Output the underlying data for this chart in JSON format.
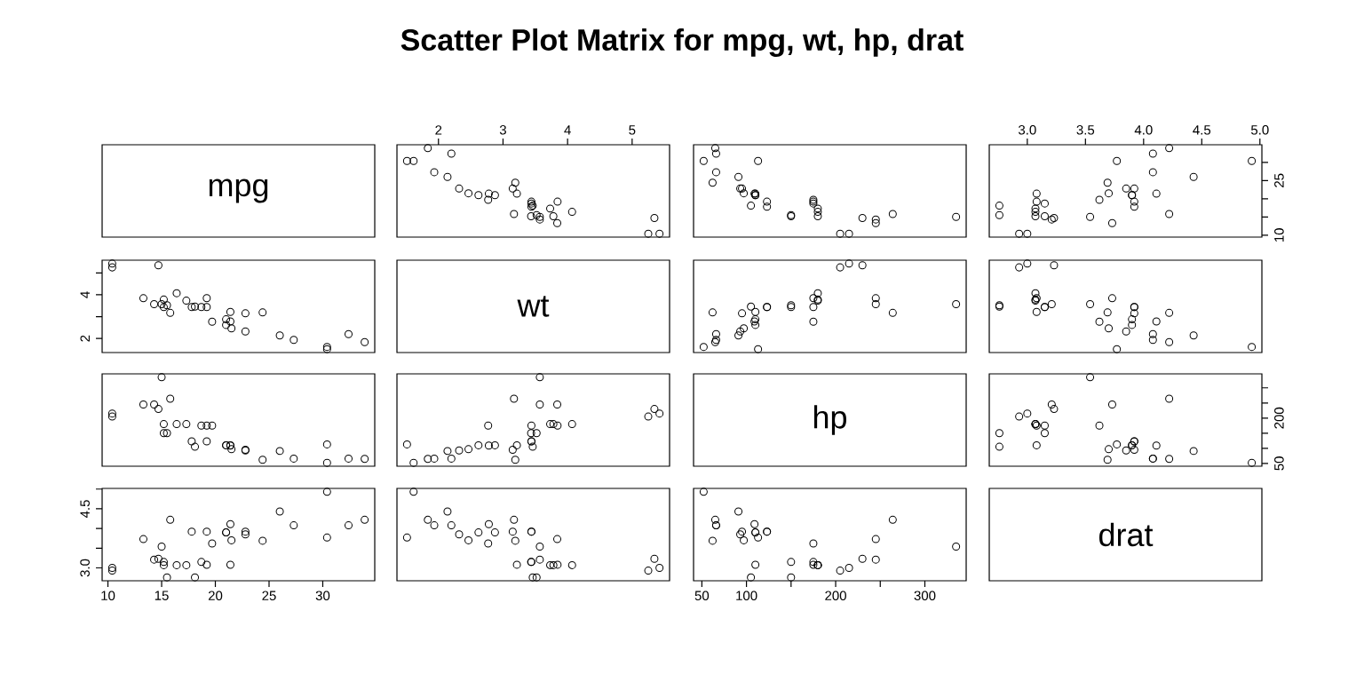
{
  "chart_data": [
    {
      "type": "other",
      "title": "Scatter Plot Matrix for mpg, wt, hp, drat",
      "annotations": [
        "mpg"
      ]
    },
    {
      "type": "scatter",
      "marker": "circle",
      "color": "#000000",
      "tick_labels": "x",
      "xlim": [
        1.357,
        5.58
      ],
      "ylim": [
        9.46,
        34.84
      ],
      "xticks": [
        2,
        3,
        4,
        5
      ],
      "x": [
        2.62,
        2.875,
        2.32,
        3.215,
        3.44,
        3.46,
        3.57,
        3.19,
        3.15,
        3.44,
        3.44,
        4.07,
        3.73,
        3.78,
        5.25,
        5.424,
        5.345,
        2.2,
        1.615,
        1.835,
        2.465,
        3.52,
        3.435,
        3.84,
        3.845,
        1.935,
        2.14,
        1.513,
        3.17,
        2.77,
        3.57,
        2.78
      ],
      "values": [
        21.0,
        21.0,
        22.8,
        21.4,
        18.7,
        18.1,
        14.3,
        24.4,
        22.8,
        19.2,
        17.8,
        16.4,
        17.3,
        15.2,
        10.4,
        10.4,
        14.7,
        32.4,
        30.4,
        33.9,
        21.5,
        15.5,
        15.2,
        13.3,
        19.2,
        27.3,
        26.0,
        30.4,
        15.8,
        19.7,
        15.0,
        21.4
      ]
    },
    {
      "type": "scatter",
      "marker": "circle",
      "color": "#000000",
      "tick_labels": false,
      "xlim": [
        40.68,
        346.32
      ],
      "ylim": [
        9.46,
        34.84
      ],
      "x": [
        110,
        110,
        93,
        110,
        175,
        105,
        245,
        62,
        95,
        123,
        123,
        180,
        180,
        180,
        205,
        215,
        230,
        66,
        52,
        65,
        97,
        150,
        150,
        245,
        175,
        66,
        91,
        113,
        264,
        175,
        335,
        109
      ],
      "values": [
        21.0,
        21.0,
        22.8,
        21.4,
        18.7,
        18.1,
        14.3,
        24.4,
        22.8,
        19.2,
        17.8,
        16.4,
        17.3,
        15.2,
        10.4,
        10.4,
        14.7,
        32.4,
        30.4,
        33.9,
        21.5,
        15.5,
        15.2,
        13.3,
        19.2,
        27.3,
        26.0,
        30.4,
        15.8,
        19.7,
        15.0,
        21.4
      ]
    },
    {
      "type": "scatter",
      "marker": "circle",
      "color": "#000000",
      "xlim": [
        2.673,
        5.017
      ],
      "ylim": [
        9.46,
        34.84
      ],
      "xticks": [
        {
          "value": 3,
          "label": "3.0"
        },
        3.5,
        {
          "value": 4,
          "label": "4.0"
        },
        4.5,
        {
          "value": 5,
          "label": "5.0"
        }
      ],
      "yticks": [
        10,
        {
          "value": 15,
          "label": null
        },
        {
          "value": 20,
          "label": null
        },
        25,
        {
          "value": 30,
          "label": null
        }
      ],
      "x": [
        3.9,
        3.9,
        3.85,
        3.08,
        3.15,
        2.76,
        3.21,
        3.69,
        3.92,
        3.92,
        3.92,
        3.07,
        3.07,
        3.07,
        2.93,
        3.0,
        3.23,
        4.08,
        4.93,
        4.22,
        3.7,
        2.76,
        3.15,
        3.73,
        3.08,
        4.08,
        4.43,
        3.77,
        4.22,
        3.62,
        3.54,
        4.11
      ],
      "values": [
        21.0,
        21.0,
        22.8,
        21.4,
        18.7,
        18.1,
        14.3,
        24.4,
        22.8,
        19.2,
        17.8,
        16.4,
        17.3,
        15.2,
        10.4,
        10.4,
        14.7,
        32.4,
        30.4,
        33.9,
        21.5,
        15.5,
        15.2,
        13.3,
        19.2,
        27.3,
        26.0,
        30.4,
        15.8,
        19.7,
        15.0,
        21.4
      ]
    },
    {
      "type": "scatter",
      "marker": "circle",
      "color": "#000000",
      "tick_labels": "y",
      "xlim": [
        9.46,
        34.84
      ],
      "ylim": [
        1.357,
        5.58
      ],
      "yticks": [
        2,
        {
          "value": 3,
          "label": null
        },
        4,
        {
          "value": 5,
          "label": null
        }
      ],
      "x": [
        21.0,
        21.0,
        22.8,
        21.4,
        18.7,
        18.1,
        14.3,
        24.4,
        22.8,
        19.2,
        17.8,
        16.4,
        17.3,
        15.2,
        10.4,
        10.4,
        14.7,
        32.4,
        30.4,
        33.9,
        21.5,
        15.5,
        15.2,
        13.3,
        19.2,
        27.3,
        26.0,
        30.4,
        15.8,
        19.7,
        15.0,
        21.4
      ],
      "values": [
        2.62,
        2.875,
        2.32,
        3.215,
        3.44,
        3.46,
        3.57,
        3.19,
        3.15,
        3.44,
        3.44,
        4.07,
        3.73,
        3.78,
        5.25,
        5.424,
        5.345,
        2.2,
        1.615,
        1.835,
        2.465,
        3.52,
        3.435,
        3.84,
        3.845,
        1.935,
        2.14,
        1.513,
        3.17,
        2.77,
        3.57,
        2.78
      ]
    },
    {
      "type": "other",
      "annotations": [
        "wt"
      ]
    },
    {
      "type": "scatter",
      "marker": "circle",
      "color": "#000000",
      "tick_labels": false,
      "xlim": [
        40.68,
        346.32
      ],
      "ylim": [
        1.357,
        5.58
      ],
      "x": [
        110,
        110,
        93,
        110,
        175,
        105,
        245,
        62,
        95,
        123,
        123,
        180,
        180,
        180,
        205,
        215,
        230,
        66,
        52,
        65,
        97,
        150,
        150,
        245,
        175,
        66,
        91,
        113,
        264,
        175,
        335,
        109
      ],
      "values": [
        2.62,
        2.875,
        2.32,
        3.215,
        3.44,
        3.46,
        3.57,
        3.19,
        3.15,
        3.44,
        3.44,
        4.07,
        3.73,
        3.78,
        5.25,
        5.424,
        5.345,
        2.2,
        1.615,
        1.835,
        2.465,
        3.52,
        3.435,
        3.84,
        3.845,
        1.935,
        2.14,
        1.513,
        3.17,
        2.77,
        3.57,
        2.78
      ]
    },
    {
      "type": "scatter",
      "marker": "circle",
      "color": "#000000",
      "tick_labels": false,
      "xlim": [
        2.673,
        5.017
      ],
      "ylim": [
        1.357,
        5.58
      ],
      "x": [
        3.9,
        3.9,
        3.85,
        3.08,
        3.15,
        2.76,
        3.21,
        3.69,
        3.92,
        3.92,
        3.92,
        3.07,
        3.07,
        3.07,
        2.93,
        3.0,
        3.23,
        4.08,
        4.93,
        4.22,
        3.7,
        2.76,
        3.15,
        3.73,
        3.08,
        4.08,
        4.43,
        3.77,
        4.22,
        3.62,
        3.54,
        4.11
      ],
      "values": [
        2.62,
        2.875,
        2.32,
        3.215,
        3.44,
        3.46,
        3.57,
        3.19,
        3.15,
        3.44,
        3.44,
        4.07,
        3.73,
        3.78,
        5.25,
        5.424,
        5.345,
        2.2,
        1.615,
        1.835,
        2.465,
        3.52,
        3.435,
        3.84,
        3.845,
        1.935,
        2.14,
        1.513,
        3.17,
        2.77,
        3.57,
        2.78
      ]
    },
    {
      "type": "scatter",
      "marker": "circle",
      "color": "#000000",
      "tick_labels": false,
      "xlim": [
        9.46,
        34.84
      ],
      "ylim": [
        40.68,
        346.32
      ],
      "x": [
        21.0,
        21.0,
        22.8,
        21.4,
        18.7,
        18.1,
        14.3,
        24.4,
        22.8,
        19.2,
        17.8,
        16.4,
        17.3,
        15.2,
        10.4,
        10.4,
        14.7,
        32.4,
        30.4,
        33.9,
        21.5,
        15.5,
        15.2,
        13.3,
        19.2,
        27.3,
        26.0,
        30.4,
        15.8,
        19.7,
        15.0,
        21.4
      ],
      "values": [
        110,
        110,
        93,
        110,
        175,
        105,
        245,
        62,
        95,
        123,
        123,
        180,
        180,
        180,
        205,
        215,
        230,
        66,
        52,
        65,
        97,
        150,
        150,
        245,
        175,
        66,
        91,
        113,
        264,
        175,
        335,
        109
      ]
    },
    {
      "type": "scatter",
      "marker": "circle",
      "color": "#000000",
      "tick_labels": false,
      "xlim": [
        1.357,
        5.58
      ],
      "ylim": [
        40.68,
        346.32
      ],
      "x": [
        2.62,
        2.875,
        2.32,
        3.215,
        3.44,
        3.46,
        3.57,
        3.19,
        3.15,
        3.44,
        3.44,
        4.07,
        3.73,
        3.78,
        5.25,
        5.424,
        5.345,
        2.2,
        1.615,
        1.835,
        2.465,
        3.52,
        3.435,
        3.84,
        3.845,
        1.935,
        2.14,
        1.513,
        3.17,
        2.77,
        3.57,
        2.78
      ],
      "values": [
        110,
        110,
        93,
        110,
        175,
        105,
        245,
        62,
        95,
        123,
        123,
        180,
        180,
        180,
        205,
        215,
        230,
        66,
        52,
        65,
        97,
        150,
        150,
        245,
        175,
        66,
        91,
        113,
        264,
        175,
        335,
        109
      ]
    },
    {
      "type": "other",
      "annotations": [
        "hp"
      ]
    },
    {
      "type": "scatter",
      "marker": "circle",
      "color": "#000000",
      "tick_labels": "y",
      "xlim": [
        2.673,
        5.017
      ],
      "ylim": [
        40.68,
        346.32
      ],
      "yticks": [
        50,
        {
          "value": 100,
          "label": null
        },
        {
          "value": 150,
          "label": null
        },
        200,
        {
          "value": 250,
          "label": null
        },
        {
          "value": 300,
          "label": null
        }
      ],
      "x": [
        3.9,
        3.9,
        3.85,
        3.08,
        3.15,
        2.76,
        3.21,
        3.69,
        3.92,
        3.92,
        3.92,
        3.07,
        3.07,
        3.07,
        2.93,
        3.0,
        3.23,
        4.08,
        4.93,
        4.22,
        3.7,
        2.76,
        3.15,
        3.73,
        3.08,
        4.08,
        4.43,
        3.77,
        4.22,
        3.62,
        3.54,
        4.11
      ],
      "values": [
        110,
        110,
        93,
        110,
        175,
        105,
        245,
        62,
        95,
        123,
        123,
        180,
        180,
        180,
        205,
        215,
        230,
        66,
        52,
        65,
        97,
        150,
        150,
        245,
        175,
        66,
        91,
        113,
        264,
        175,
        335,
        109
      ]
    },
    {
      "type": "scatter",
      "marker": "circle",
      "color": "#000000",
      "xlim": [
        9.46,
        34.84
      ],
      "ylim": [
        2.673,
        5.017
      ],
      "xticks": [
        10,
        15,
        20,
        25,
        30
      ],
      "yticks": [
        {
          "value": 3,
          "label": "3.0"
        },
        {
          "value": 3.5,
          "label": null
        },
        {
          "value": 4,
          "label": null
        },
        4.5,
        {
          "value": 5,
          "label": null
        }
      ],
      "x": [
        21.0,
        21.0,
        22.8,
        21.4,
        18.7,
        18.1,
        14.3,
        24.4,
        22.8,
        19.2,
        17.8,
        16.4,
        17.3,
        15.2,
        10.4,
        10.4,
        14.7,
        32.4,
        30.4,
        33.9,
        21.5,
        15.5,
        15.2,
        13.3,
        19.2,
        27.3,
        26.0,
        30.4,
        15.8,
        19.7,
        15.0,
        21.4
      ],
      "values": [
        3.9,
        3.9,
        3.85,
        3.08,
        3.15,
        2.76,
        3.21,
        3.69,
        3.92,
        3.92,
        3.92,
        3.07,
        3.07,
        3.07,
        2.93,
        3.0,
        3.23,
        4.08,
        4.93,
        4.22,
        3.7,
        2.76,
        3.15,
        3.73,
        3.08,
        4.08,
        4.43,
        3.77,
        4.22,
        3.62,
        3.54,
        4.11
      ]
    },
    {
      "type": "scatter",
      "marker": "circle",
      "color": "#000000",
      "tick_labels": false,
      "xlim": [
        1.357,
        5.58
      ],
      "ylim": [
        2.673,
        5.017
      ],
      "x": [
        2.62,
        2.875,
        2.32,
        3.215,
        3.44,
        3.46,
        3.57,
        3.19,
        3.15,
        3.44,
        3.44,
        4.07,
        3.73,
        3.78,
        5.25,
        5.424,
        5.345,
        2.2,
        1.615,
        1.835,
        2.465,
        3.52,
        3.435,
        3.84,
        3.845,
        1.935,
        2.14,
        1.513,
        3.17,
        2.77,
        3.57,
        2.78
      ],
      "values": [
        3.9,
        3.9,
        3.85,
        3.08,
        3.15,
        2.76,
        3.21,
        3.69,
        3.92,
        3.92,
        3.92,
        3.07,
        3.07,
        3.07,
        2.93,
        3.0,
        3.23,
        4.08,
        4.93,
        4.22,
        3.7,
        2.76,
        3.15,
        3.73,
        3.08,
        4.08,
        4.43,
        3.77,
        4.22,
        3.62,
        3.54,
        4.11
      ]
    },
    {
      "type": "scatter",
      "marker": "circle",
      "color": "#000000",
      "tick_labels": "x",
      "xlim": [
        40.68,
        346.32
      ],
      "ylim": [
        2.673,
        5.017
      ],
      "xticks": [
        50,
        100,
        {
          "value": 150,
          "label": null
        },
        200,
        {
          "value": 250,
          "label": null
        },
        300
      ],
      "x": [
        110,
        110,
        93,
        110,
        175,
        105,
        245,
        62,
        95,
        123,
        123,
        180,
        180,
        180,
        205,
        215,
        230,
        66,
        52,
        65,
        97,
        150,
        150,
        245,
        175,
        66,
        91,
        113,
        264,
        175,
        335,
        109
      ],
      "values": [
        3.9,
        3.9,
        3.85,
        3.08,
        3.15,
        2.76,
        3.21,
        3.69,
        3.92,
        3.92,
        3.92,
        3.07,
        3.07,
        3.07,
        2.93,
        3.0,
        3.23,
        4.08,
        4.93,
        4.22,
        3.7,
        2.76,
        3.15,
        3.73,
        3.08,
        4.08,
        4.43,
        3.77,
        4.22,
        3.62,
        3.54,
        4.11
      ]
    },
    {
      "type": "other",
      "annotations": [
        "drat"
      ]
    }
  ]
}
